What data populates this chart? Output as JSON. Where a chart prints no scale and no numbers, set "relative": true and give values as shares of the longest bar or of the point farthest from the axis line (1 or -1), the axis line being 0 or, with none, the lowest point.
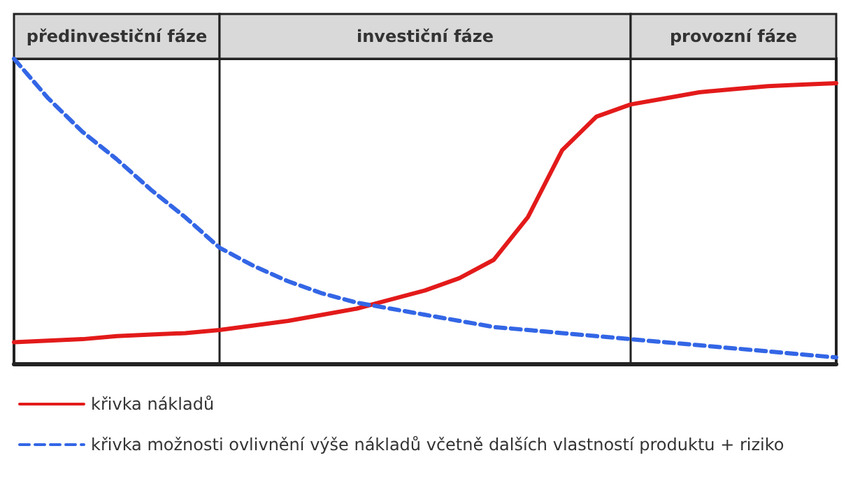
{
  "chart_data": {
    "type": "line",
    "relative": true,
    "categories": [
      null,
      null,
      null,
      null,
      null,
      null,
      null,
      null,
      null,
      null,
      null,
      null,
      null,
      null,
      null,
      null,
      null,
      null,
      null,
      null,
      null,
      null,
      null,
      null,
      null
    ],
    "grid": false,
    "legend": "bottom left",
    "marker": "none",
    "series": [
      {
        "name": "křivka nákladů",
        "color": "#e31a1a",
        "line_style": "solid",
        "values": [
          0.07,
          0.075,
          0.08,
          0.09,
          0.095,
          0.1,
          0.11,
          0.125,
          0.14,
          0.16,
          0.18,
          0.21,
          0.24,
          0.28,
          0.34,
          0.48,
          0.7,
          0.81,
          0.85,
          0.87,
          0.89,
          0.9,
          0.91,
          0.915,
          0.92
        ]
      },
      {
        "name": "křivka možnosti ovlivnění výše nákladů včetně dalších vlastností produktu + riziko",
        "color": "#3366e6",
        "line_style": "dashed",
        "values": [
          1.0,
          0.87,
          0.76,
          0.67,
          0.57,
          0.48,
          0.38,
          0.32,
          0.27,
          0.23,
          0.2,
          0.18,
          0.16,
          0.14,
          0.12,
          0.11,
          0.1,
          0.09,
          0.08,
          0.07,
          0.06,
          0.05,
          0.04,
          0.03,
          0.02
        ]
      }
    ],
    "annotations": [
      "předinvestiční fáze",
      "investiční fáze",
      "provozní fáze"
    ]
  }
}
